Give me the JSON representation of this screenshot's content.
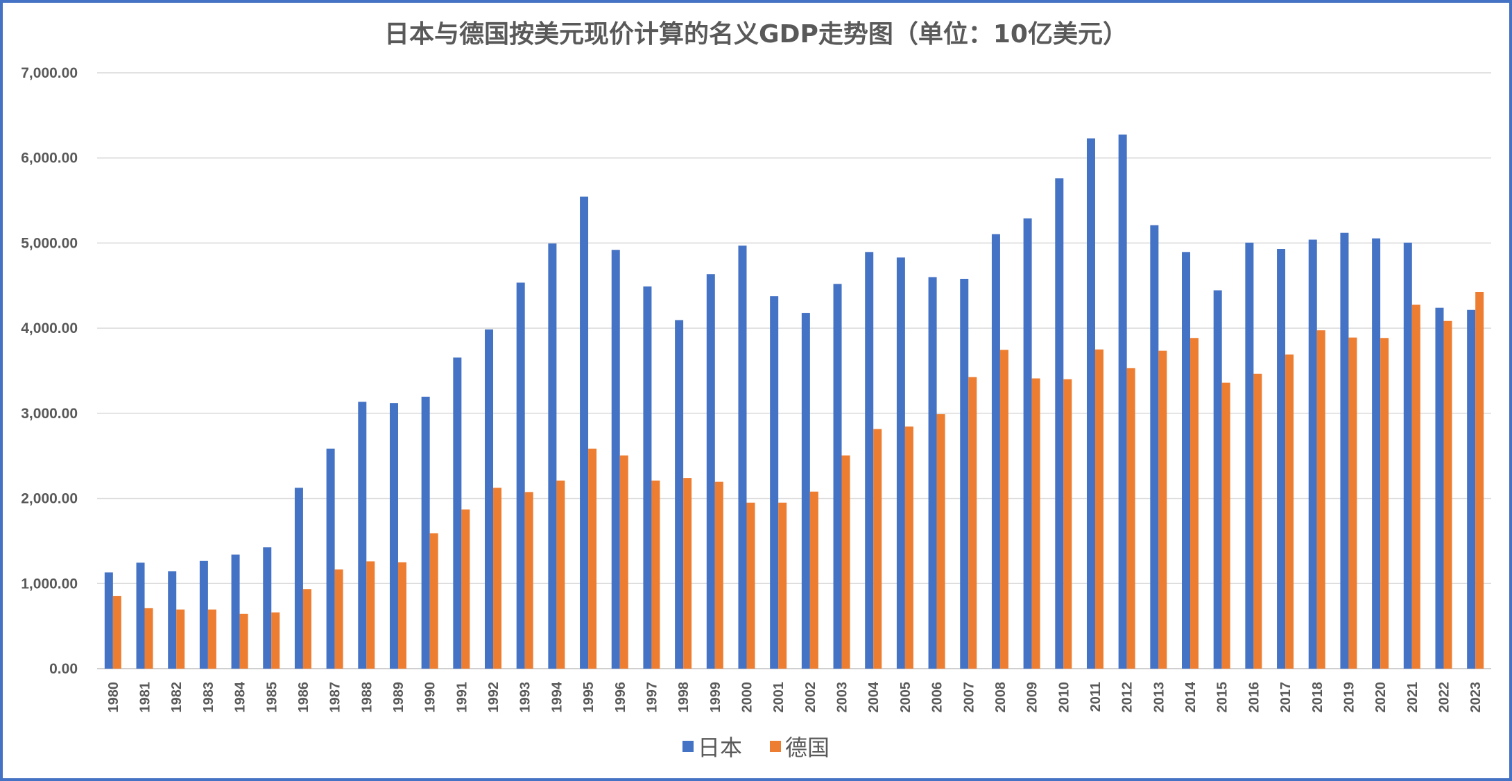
{
  "chart_data": {
    "type": "bar",
    "title": "日本与德国按美元现价计算的名义GDP走势图（单位：10亿美元）",
    "xlabel": "",
    "ylabel": "",
    "ylim": [
      0,
      7000
    ],
    "y_ticks": [
      "0.00",
      "1,000.00",
      "2,000.00",
      "3,000.00",
      "4,000.00",
      "5,000.00",
      "6,000.00",
      "7,000.00"
    ],
    "y_tick_values": [
      0,
      1000,
      2000,
      3000,
      4000,
      5000,
      6000,
      7000
    ],
    "grid": true,
    "legend_position": "bottom",
    "categories": [
      "1980",
      "1981",
      "1982",
      "1983",
      "1984",
      "1985",
      "1986",
      "1987",
      "1988",
      "1989",
      "1990",
      "1991",
      "1992",
      "1993",
      "1994",
      "1995",
      "1996",
      "1997",
      "1998",
      "1999",
      "2000",
      "2001",
      "2002",
      "2003",
      "2004",
      "2005",
      "2006",
      "2007",
      "2008",
      "2009",
      "2010",
      "2011",
      "2012",
      "2013",
      "2014",
      "2015",
      "2016",
      "2017",
      "2018",
      "2019",
      "2020",
      "2021",
      "2022",
      "2023"
    ],
    "series": [
      {
        "name": "日本",
        "color": "#4472C4",
        "values": [
          1130,
          1245,
          1145,
          1265,
          1340,
          1425,
          2125,
          2585,
          3135,
          3120,
          3195,
          3655,
          3985,
          4535,
          4995,
          5545,
          4920,
          4490,
          4095,
          4635,
          4970,
          4375,
          4180,
          4520,
          4895,
          4830,
          4600,
          4580,
          5105,
          5290,
          5760,
          6230,
          6275,
          5210,
          4895,
          4445,
          5005,
          4930,
          5040,
          5120,
          5055,
          5005,
          4240,
          4215
        ]
      },
      {
        "name": "德国",
        "color": "#ED7D31",
        "values": [
          855,
          710,
          695,
          695,
          645,
          660,
          935,
          1165,
          1260,
          1250,
          1590,
          1870,
          2125,
          2075,
          2210,
          2585,
          2505,
          2210,
          2240,
          2195,
          1950,
          1950,
          2080,
          2505,
          2815,
          2845,
          2990,
          3425,
          3745,
          3410,
          3400,
          3750,
          3530,
          3735,
          3885,
          3360,
          3465,
          3690,
          3975,
          3890,
          3885,
          4275,
          4085,
          4425
        ]
      }
    ]
  }
}
